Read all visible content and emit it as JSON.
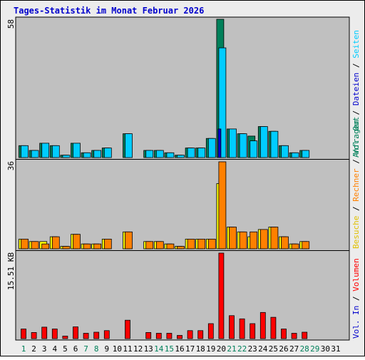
{
  "title": "Tages-Statistik im Monat Februar 2026",
  "colors": {
    "frame": "#ececec",
    "plot_bg": "#c0c0c0",
    "title": "#0000cc",
    "anfragen": "#00805a",
    "dateien": "#00ccff",
    "seiten": "#0000cc",
    "besuche": "#ffff00",
    "rechner": "#ff8000",
    "volumen": "#ff0000",
    "weekday_label": "#000000",
    "weekend_label": "#00805a"
  },
  "legend": {
    "top": [
      {
        "text": "Anfragen",
        "color": "#00805a"
      },
      {
        "text": "Dateien",
        "color": "#0000cc"
      },
      {
        "text": "Seiten",
        "color": "#00ccff"
      }
    ],
    "middle": [
      {
        "text": "Besuche",
        "color": "#e0c000"
      },
      {
        "text": "Rechner",
        "color": "#ff8000"
      },
      {
        "text": "Vol. Out",
        "color": "#00805a"
      }
    ],
    "bottom": [
      {
        "text": "Vol. In",
        "color": "#0000cc"
      },
      {
        "text": "Volumen",
        "color": "#ff0000"
      }
    ]
  },
  "chart_data": [
    {
      "type": "bar",
      "panel": "top",
      "ymax_label": "58",
      "ylim": [
        0,
        58
      ],
      "categories": [
        "1",
        "2",
        "3",
        "4",
        "5",
        "6",
        "7",
        "8",
        "9",
        "10",
        "11",
        "12",
        "13",
        "14",
        "15",
        "16",
        "17",
        "18",
        "19",
        "20",
        "21",
        "22",
        "23",
        "24",
        "25",
        "26",
        "27",
        "28",
        "29",
        "30",
        "31"
      ],
      "weekend_days": [
        "1",
        "7",
        "8",
        "14",
        "15",
        "21",
        "22",
        "28",
        "29"
      ],
      "series": [
        {
          "name": "Anfragen",
          "values": [
            5,
            3,
            6,
            5,
            1,
            6,
            2,
            3,
            4,
            0,
            10,
            0,
            3,
            3,
            2,
            1,
            4,
            4,
            8,
            58,
            12,
            10,
            9,
            13,
            11,
            5,
            2,
            3,
            0,
            0,
            0
          ]
        },
        {
          "name": "Dateien",
          "values": [
            5,
            3,
            6,
            5,
            1,
            6,
            2,
            3,
            4,
            0,
            10,
            0,
            3,
            3,
            2,
            1,
            4,
            4,
            8,
            46,
            12,
            10,
            7,
            13,
            11,
            5,
            2,
            3,
            0,
            0,
            0
          ]
        },
        {
          "name": "Seiten",
          "values": [
            0,
            0,
            0,
            0,
            0,
            0,
            0,
            0,
            0,
            0,
            0,
            0,
            0,
            0,
            0,
            0,
            0,
            0,
            0,
            12,
            0,
            0,
            0,
            0,
            0,
            0,
            0,
            0,
            0,
            0,
            0
          ]
        }
      ]
    },
    {
      "type": "bar",
      "panel": "middle",
      "ymax_label": "36",
      "ylim": [
        0,
        36
      ],
      "categories": [
        "1",
        "2",
        "3",
        "4",
        "5",
        "6",
        "7",
        "8",
        "9",
        "10",
        "11",
        "12",
        "13",
        "14",
        "15",
        "16",
        "17",
        "18",
        "19",
        "20",
        "21",
        "22",
        "23",
        "24",
        "25",
        "26",
        "27",
        "28",
        "29",
        "30",
        "31"
      ],
      "series": [
        {
          "name": "Besuche",
          "values": [
            4,
            3,
            3,
            5,
            1,
            6,
            2,
            2,
            4,
            0,
            7,
            0,
            3,
            3,
            2,
            1,
            4,
            4,
            4,
            27,
            9,
            7,
            5,
            8,
            9,
            5,
            2,
            3,
            0,
            0,
            0
          ]
        },
        {
          "name": "Rechner",
          "values": [
            4,
            3,
            2,
            5,
            1,
            6,
            2,
            2,
            4,
            0,
            7,
            0,
            3,
            3,
            2,
            1,
            4,
            4,
            4,
            36,
            9,
            7,
            7,
            8,
            9,
            5,
            2,
            3,
            0,
            0,
            0
          ]
        }
      ]
    },
    {
      "type": "bar",
      "panel": "bottom",
      "ymax_label": "15.51 KB",
      "ylim": [
        0,
        15.51
      ],
      "categories": [
        "1",
        "2",
        "3",
        "4",
        "5",
        "6",
        "7",
        "8",
        "9",
        "10",
        "11",
        "12",
        "13",
        "14",
        "15",
        "16",
        "17",
        "18",
        "19",
        "20",
        "21",
        "22",
        "23",
        "24",
        "25",
        "26",
        "27",
        "28",
        "29",
        "30",
        "31"
      ],
      "series": [
        {
          "name": "Volumen",
          "values": [
            1.74,
            1.11,
            2.08,
            1.74,
            0.47,
            2.13,
            0.97,
            1.16,
            1.45,
            0,
            3.33,
            0,
            1.11,
            0.97,
            0.97,
            0.58,
            1.45,
            1.45,
            2.71,
            15.51,
            4.16,
            3.58,
            2.71,
            4.74,
            3.87,
            1.74,
            0.97,
            1.16,
            0,
            0,
            0
          ]
        }
      ]
    }
  ]
}
